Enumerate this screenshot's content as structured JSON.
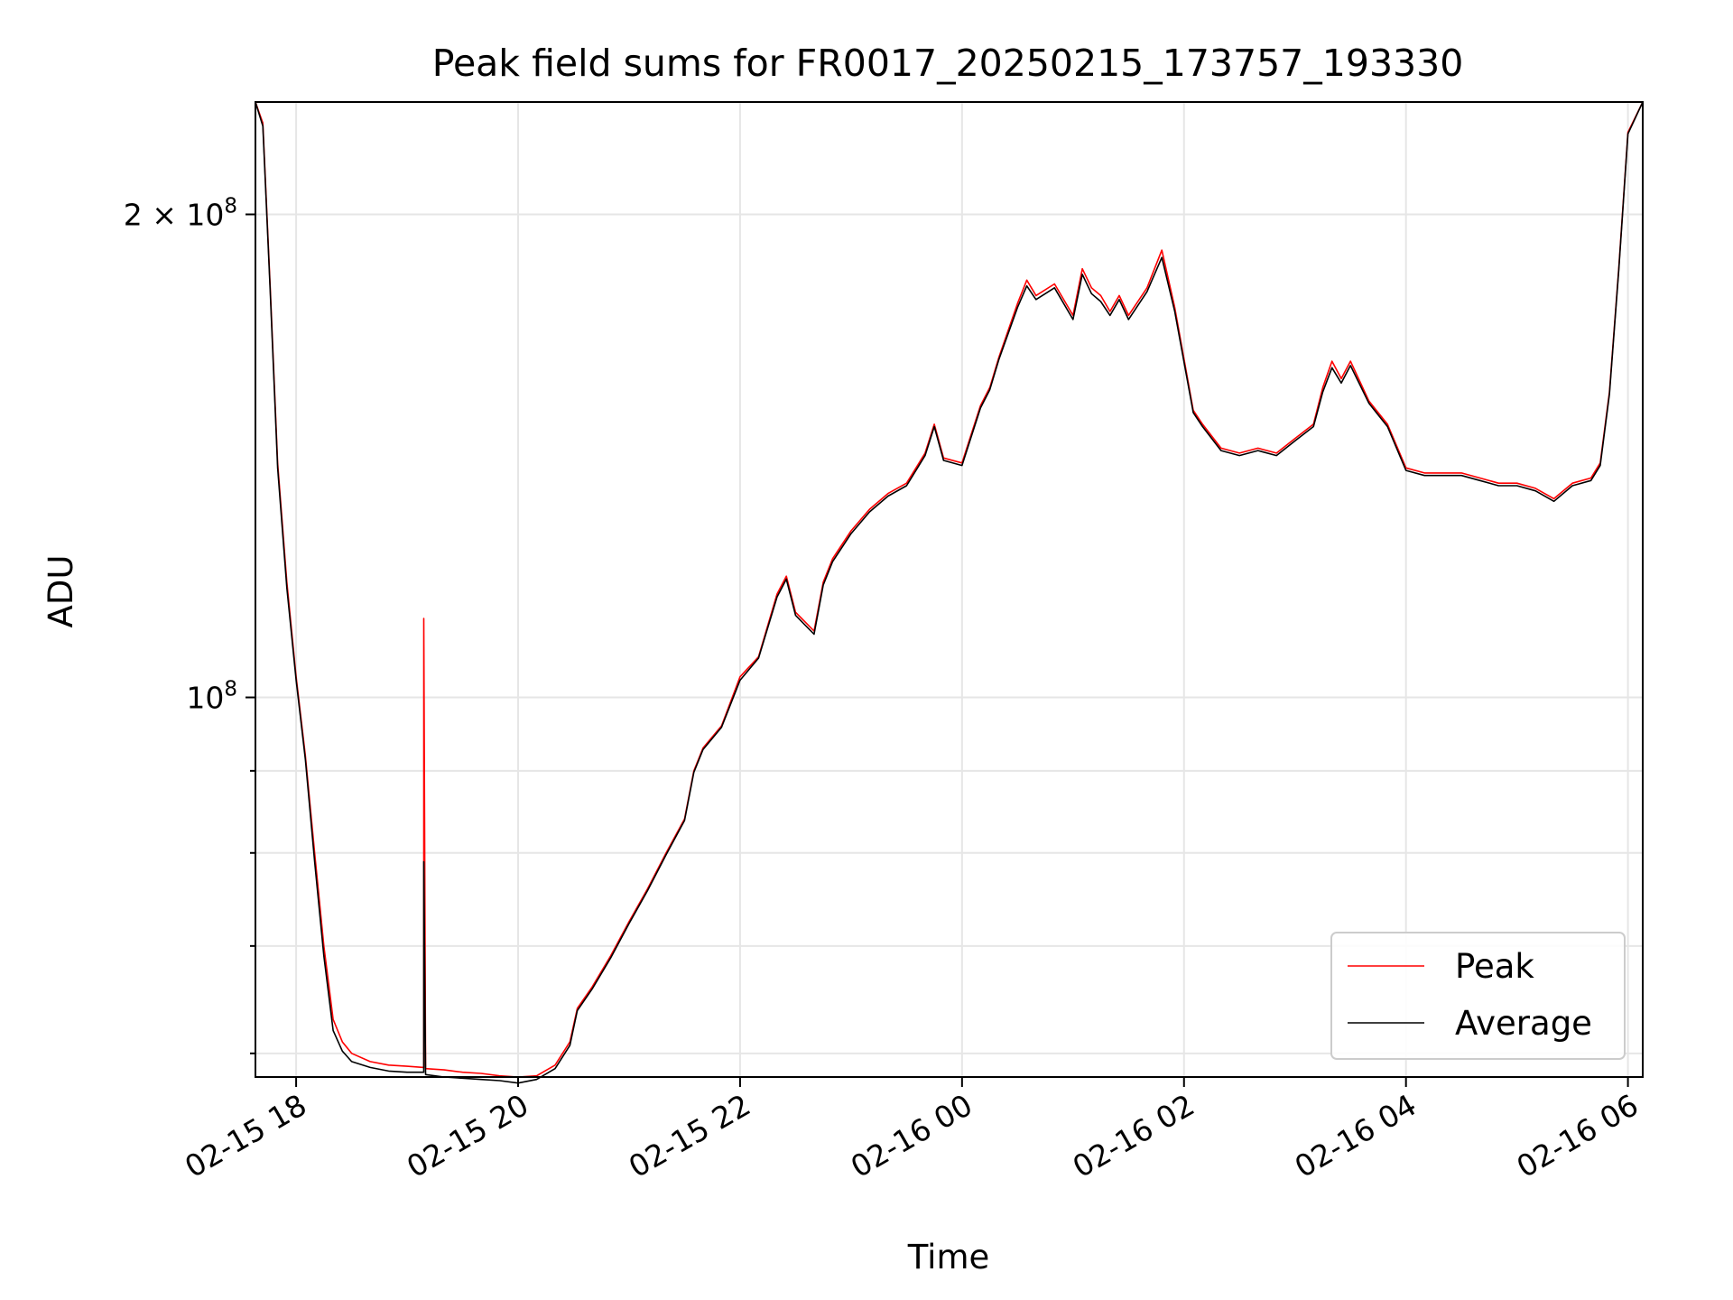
{
  "chart_data": {
    "type": "line",
    "title": "Peak field sums for FR0017_20250215_173757_193330",
    "xlabel": "Time",
    "ylabel": "ADU",
    "yscale": "log",
    "xlim": [
      "2025-02-15 17:38",
      "2025-02-16 06:08"
    ],
    "ylim": [
      58000000.0,
      235000000.0
    ],
    "grid": true,
    "legend_position": "lower-right",
    "x_ticks": [
      {
        "t": "2025-02-15 18:00",
        "label": "02-15 18"
      },
      {
        "t": "2025-02-15 20:00",
        "label": "02-15 20"
      },
      {
        "t": "2025-02-15 22:00",
        "label": "02-15 22"
      },
      {
        "t": "2025-02-16 00:00",
        "label": "02-16 00"
      },
      {
        "t": "2025-02-16 02:00",
        "label": "02-16 02"
      },
      {
        "t": "2025-02-16 04:00",
        "label": "02-16 04"
      },
      {
        "t": "2025-02-16 06:00",
        "label": "02-16 06"
      }
    ],
    "y_ticks_major": [
      {
        "v": 100000000,
        "base": "10",
        "exp": "8",
        "label": "10^8"
      },
      {
        "v": 200000000,
        "coef": "2 × 10",
        "exp": "8",
        "label": "2 × 10^8"
      }
    ],
    "y_ticks_minor": [
      60000000,
      70000000,
      80000000,
      90000000
    ],
    "series": [
      {
        "name": "Peak",
        "color": "#ff0000",
        "x": [
          "2025-02-15 17:38",
          "2025-02-15 17:42",
          "2025-02-15 17:46",
          "2025-02-15 17:50",
          "2025-02-15 17:55",
          "2025-02-15 18:00",
          "2025-02-15 18:05",
          "2025-02-15 18:10",
          "2025-02-15 18:15",
          "2025-02-15 18:20",
          "2025-02-15 18:25",
          "2025-02-15 18:30",
          "2025-02-15 18:40",
          "2025-02-15 18:50",
          "2025-02-15 19:00",
          "2025-02-15 19:09",
          "2025-02-15 19:09",
          "2025-02-15 19:10",
          "2025-02-15 19:20",
          "2025-02-15 19:30",
          "2025-02-15 19:40",
          "2025-02-15 19:50",
          "2025-02-15 20:00",
          "2025-02-15 20:10",
          "2025-02-15 20:20",
          "2025-02-15 20:28",
          "2025-02-15 20:32",
          "2025-02-15 20:40",
          "2025-02-15 20:50",
          "2025-02-15 21:00",
          "2025-02-15 21:10",
          "2025-02-15 21:20",
          "2025-02-15 21:30",
          "2025-02-15 21:35",
          "2025-02-15 21:40",
          "2025-02-15 21:50",
          "2025-02-15 22:00",
          "2025-02-15 22:10",
          "2025-02-15 22:20",
          "2025-02-15 22:25",
          "2025-02-15 22:30",
          "2025-02-15 22:40",
          "2025-02-15 22:45",
          "2025-02-15 22:50",
          "2025-02-15 23:00",
          "2025-02-15 23:10",
          "2025-02-15 23:20",
          "2025-02-15 23:30",
          "2025-02-15 23:40",
          "2025-02-15 23:45",
          "2025-02-15 23:50",
          "2025-02-16 00:00",
          "2025-02-16 00:10",
          "2025-02-16 00:15",
          "2025-02-16 00:20",
          "2025-02-16 00:30",
          "2025-02-16 00:35",
          "2025-02-16 00:40",
          "2025-02-16 00:50",
          "2025-02-16 01:00",
          "2025-02-16 01:05",
          "2025-02-16 01:10",
          "2025-02-16 01:15",
          "2025-02-16 01:20",
          "2025-02-16 01:25",
          "2025-02-16 01:30",
          "2025-02-16 01:40",
          "2025-02-16 01:48",
          "2025-02-16 01:55",
          "2025-02-16 02:05",
          "2025-02-16 02:10",
          "2025-02-16 02:20",
          "2025-02-16 02:30",
          "2025-02-16 02:40",
          "2025-02-16 02:50",
          "2025-02-16 03:00",
          "2025-02-16 03:10",
          "2025-02-16 03:15",
          "2025-02-16 03:20",
          "2025-02-16 03:25",
          "2025-02-16 03:30",
          "2025-02-16 03:40",
          "2025-02-16 03:50",
          "2025-02-16 04:00",
          "2025-02-16 04:10",
          "2025-02-16 04:20",
          "2025-02-16 04:30",
          "2025-02-16 04:40",
          "2025-02-16 04:50",
          "2025-02-16 05:00",
          "2025-02-16 05:10",
          "2025-02-16 05:20",
          "2025-02-16 05:30",
          "2025-02-16 05:40",
          "2025-02-16 05:45",
          "2025-02-16 05:50",
          "2025-02-16 05:55",
          "2025-02-16 06:00",
          "2025-02-16 06:08"
        ],
        "values": [
          235000000,
          228000000,
          180000000,
          140000000,
          118000000,
          103000000,
          92000000,
          80000000,
          70000000,
          63000000,
          61000000,
          60000000,
          59300000,
          59000000,
          58900000,
          58800000,
          112000000,
          58700000,
          58600000,
          58400000,
          58300000,
          58100000,
          58000000,
          58100000,
          59000000,
          61000000,
          64000000,
          66000000,
          69000000,
          72500000,
          76000000,
          80000000,
          84000000,
          90000000,
          93000000,
          96000000,
          103000000,
          106000000,
          116000000,
          119000000,
          113000000,
          110000000,
          118000000,
          122000000,
          127000000,
          131000000,
          134000000,
          136000000,
          142000000,
          148000000,
          141000000,
          140000000,
          152000000,
          156000000,
          163000000,
          176000000,
          182000000,
          178000000,
          181000000,
          173000000,
          185000000,
          180000000,
          178000000,
          174000000,
          178000000,
          173000000,
          180000000,
          190000000,
          175000000,
          151000000,
          148000000,
          143000000,
          142000000,
          143000000,
          142000000,
          145000000,
          148000000,
          156000000,
          162000000,
          158000000,
          162000000,
          153000000,
          148000000,
          139000000,
          138000000,
          138000000,
          138000000,
          137000000,
          136000000,
          136000000,
          135000000,
          133000000,
          136000000,
          137000000,
          140000000,
          155000000,
          185000000,
          225000000,
          235000000
        ]
      },
      {
        "name": "Average",
        "color": "#000000",
        "x": [
          "2025-02-15 17:38",
          "2025-02-15 17:42",
          "2025-02-15 17:46",
          "2025-02-15 17:50",
          "2025-02-15 17:55",
          "2025-02-15 18:00",
          "2025-02-15 18:05",
          "2025-02-15 18:10",
          "2025-02-15 18:15",
          "2025-02-15 18:20",
          "2025-02-15 18:25",
          "2025-02-15 18:30",
          "2025-02-15 18:40",
          "2025-02-15 18:50",
          "2025-02-15 19:00",
          "2025-02-15 19:09",
          "2025-02-15 19:09",
          "2025-02-15 19:10",
          "2025-02-15 19:20",
          "2025-02-15 19:30",
          "2025-02-15 19:40",
          "2025-02-15 19:50",
          "2025-02-15 20:00",
          "2025-02-15 20:10",
          "2025-02-15 20:20",
          "2025-02-15 20:28",
          "2025-02-15 20:32",
          "2025-02-15 20:40",
          "2025-02-15 20:50",
          "2025-02-15 21:00",
          "2025-02-15 21:10",
          "2025-02-15 21:20",
          "2025-02-15 21:30",
          "2025-02-15 21:35",
          "2025-02-15 21:40",
          "2025-02-15 21:50",
          "2025-02-15 22:00",
          "2025-02-15 22:10",
          "2025-02-15 22:20",
          "2025-02-15 22:25",
          "2025-02-15 22:30",
          "2025-02-15 22:40",
          "2025-02-15 22:45",
          "2025-02-15 22:50",
          "2025-02-15 23:00",
          "2025-02-15 23:10",
          "2025-02-15 23:20",
          "2025-02-15 23:30",
          "2025-02-15 23:40",
          "2025-02-15 23:45",
          "2025-02-15 23:50",
          "2025-02-16 00:00",
          "2025-02-16 00:10",
          "2025-02-16 00:15",
          "2025-02-16 00:20",
          "2025-02-16 00:30",
          "2025-02-16 00:35",
          "2025-02-16 00:40",
          "2025-02-16 00:50",
          "2025-02-16 01:00",
          "2025-02-16 01:05",
          "2025-02-16 01:10",
          "2025-02-16 01:15",
          "2025-02-16 01:20",
          "2025-02-16 01:25",
          "2025-02-16 01:30",
          "2025-02-16 01:40",
          "2025-02-16 01:48",
          "2025-02-16 01:55",
          "2025-02-16 02:05",
          "2025-02-16 02:10",
          "2025-02-16 02:20",
          "2025-02-16 02:30",
          "2025-02-16 02:40",
          "2025-02-16 02:50",
          "2025-02-16 03:00",
          "2025-02-16 03:10",
          "2025-02-16 03:15",
          "2025-02-16 03:20",
          "2025-02-16 03:25",
          "2025-02-16 03:30",
          "2025-02-16 03:40",
          "2025-02-16 03:50",
          "2025-02-16 04:00",
          "2025-02-16 04:10",
          "2025-02-16 04:20",
          "2025-02-16 04:30",
          "2025-02-16 04:40",
          "2025-02-16 04:50",
          "2025-02-16 05:00",
          "2025-02-16 05:10",
          "2025-02-16 05:20",
          "2025-02-16 05:30",
          "2025-02-16 05:40",
          "2025-02-16 05:45",
          "2025-02-16 05:50",
          "2025-02-16 05:55",
          "2025-02-16 06:00",
          "2025-02-16 06:08"
        ],
        "values": [
          235000000,
          227000000,
          179000000,
          139000000,
          117000000,
          102500000,
          91500000,
          79000000,
          69000000,
          62000000,
          60200000,
          59300000,
          58800000,
          58500000,
          58400000,
          58400000,
          79000000,
          58200000,
          58000000,
          57900000,
          57800000,
          57700000,
          57500000,
          57800000,
          58700000,
          60700000,
          63800000,
          65800000,
          68800000,
          72300000,
          75800000,
          79800000,
          83800000,
          89800000,
          92800000,
          95800000,
          102500000,
          105800000,
          115500000,
          118500000,
          112500000,
          109500000,
          117500000,
          121500000,
          126500000,
          130500000,
          133500000,
          135500000,
          141500000,
          147500000,
          140500000,
          139500000,
          151500000,
          155500000,
          162500000,
          175000000,
          180500000,
          177000000,
          180000000,
          172000000,
          183500000,
          178500000,
          176500000,
          173000000,
          177000000,
          172000000,
          179000000,
          188000000,
          174000000,
          150500000,
          147500000,
          142500000,
          141500000,
          142500000,
          141500000,
          144500000,
          147500000,
          155000000,
          160500000,
          157000000,
          161000000,
          152500000,
          147500000,
          138500000,
          137500000,
          137500000,
          137500000,
          136500000,
          135500000,
          135500000,
          134500000,
          132500000,
          135500000,
          136500000,
          139500000,
          154500000,
          184500000,
          224500000,
          235000000
        ]
      }
    ]
  }
}
